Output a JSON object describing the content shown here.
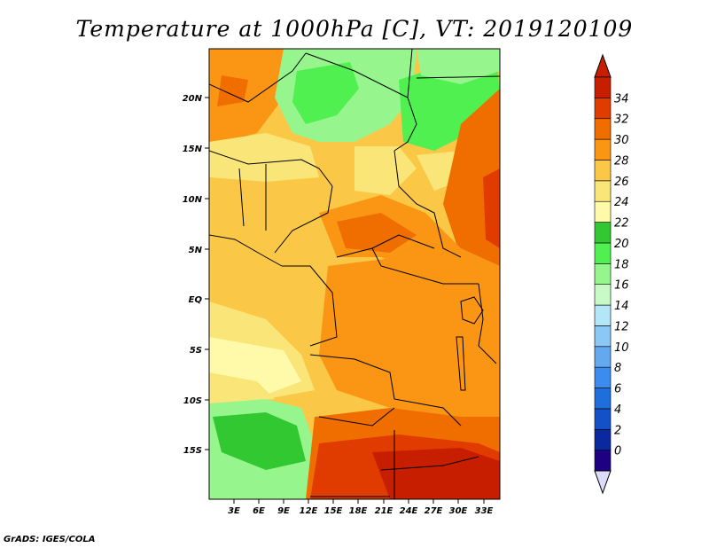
{
  "title": "Temperature at 1000hPa [C], VT: 2019120109",
  "credit": "GrADS: IGES/COLA",
  "map": {
    "lat_labels": [
      "20N",
      "15N",
      "10N",
      "5N",
      "EQ",
      "5S",
      "10S",
      "15S"
    ],
    "lon_labels": [
      "3E",
      "6E",
      "9E",
      "12E",
      "15E",
      "18E",
      "21E",
      "24E",
      "27E",
      "30E",
      "33E"
    ]
  },
  "colorbar": {
    "labels": [
      "0",
      "2",
      "4",
      "6",
      "8",
      "10",
      "12",
      "14",
      "16",
      "18",
      "20",
      "22",
      "24",
      "26",
      "28",
      "30",
      "32",
      "34"
    ],
    "colors": [
      "#1e0082",
      "#0a28a0",
      "#1450c8",
      "#1e6edc",
      "#3c8cf0",
      "#64a8f0",
      "#8cc8f5",
      "#b4e6fa",
      "#c8fac8",
      "#96f58c",
      "#50f050",
      "#32c832",
      "#fffaaa",
      "#fae678",
      "#fac846",
      "#fa9614",
      "#f06e00",
      "#e13c00",
      "#c81e00"
    ],
    "under_color": "#dcdcfa",
    "over_color": "#c81e00"
  }
}
